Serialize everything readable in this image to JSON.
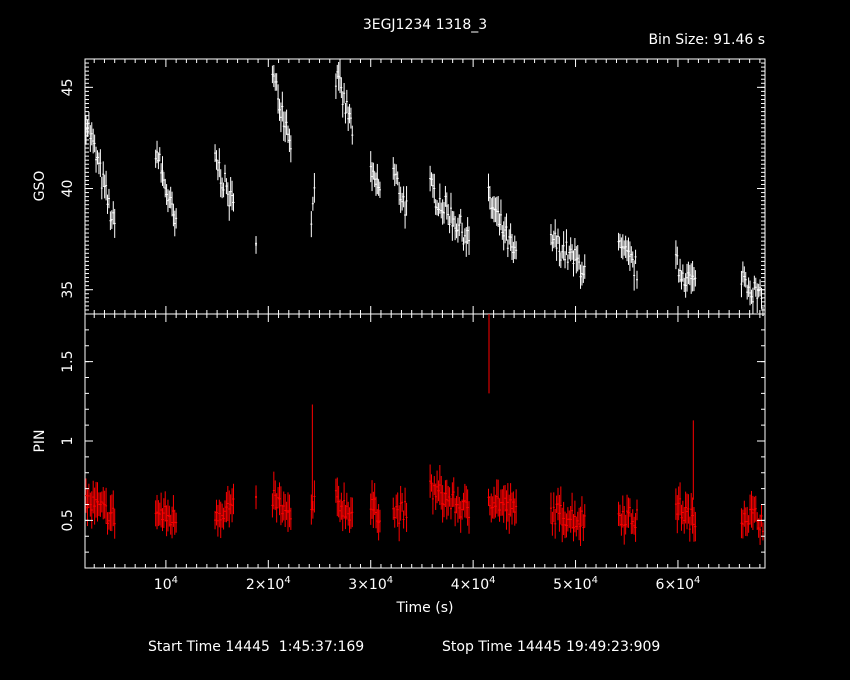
{
  "header": {
    "title": "3EGJ1234 1318_3",
    "bin_size": "Bin Size: 91.46 s"
  },
  "footer": {
    "start": "Start Time 14445  1:45:37:169",
    "stop": "Stop Time 14445 19:49:23:909"
  },
  "colors": {
    "gso": "#ffffff",
    "pin": "#ff0000",
    "axes": "#ffffff",
    "background": "#000000"
  },
  "chart_data": [
    {
      "type": "scatter",
      "panel": "top",
      "ylabel": "GSO",
      "ylim": [
        33.8,
        46.4
      ],
      "xlim": [
        2100,
        68500
      ],
      "yticks": [
        35,
        40,
        45
      ],
      "ytick_labels": [
        "35",
        "40",
        "45"
      ],
      "series": [
        {
          "color": "#ffffff",
          "error_bars": true,
          "segments": [
            {
              "x": [
                2200,
                5000
              ],
              "y": [
                43.5,
                38.0
              ]
            },
            {
              "x": [
                9000,
                11000
              ],
              "y": [
                42.0,
                38.0
              ]
            },
            {
              "x": [
                14800,
                16600
              ],
              "y": [
                41.5,
                39.0
              ]
            },
            {
              "x": [
                18800,
                18800
              ],
              "y": [
                37.8,
                37.8
              ]
            },
            {
              "x": [
                20400,
                22200
              ],
              "y": [
                45.5,
                42.5
              ]
            },
            {
              "x": [
                24200,
                24500
              ],
              "y": [
                38.0,
                40.5
              ]
            },
            {
              "x": [
                26600,
                28200
              ],
              "y": [
                45.5,
                43.0
              ]
            },
            {
              "x": [
                30000,
                30900
              ],
              "y": [
                40.5,
                40.0
              ]
            },
            {
              "x": [
                32200,
                33500
              ],
              "y": [
                40.8,
                39.0
              ]
            },
            {
              "x": [
                35800,
                39600
              ],
              "y": [
                40.0,
                37.5
              ]
            },
            {
              "x": [
                41500,
                44200
              ],
              "y": [
                39.5,
                36.5
              ]
            },
            {
              "x": [
                47600,
                50900
              ],
              "y": [
                37.5,
                36.0
              ]
            },
            {
              "x": [
                54200,
                56000
              ],
              "y": [
                37.0,
                36.0
              ]
            },
            {
              "x": [
                59800,
                61700
              ],
              "y": [
                36.2,
                35.2
              ]
            },
            {
              "x": [
                66200,
                68300
              ],
              "y": [
                35.8,
                34.3
              ]
            }
          ]
        }
      ]
    },
    {
      "type": "scatter",
      "panel": "bottom",
      "xlabel": "Time (s)",
      "ylabel": "PIN",
      "ylim": [
        0.2,
        1.8
      ],
      "xlim": [
        2100,
        68500
      ],
      "yticks": [
        0.5,
        1,
        1.5
      ],
      "ytick_labels": [
        "0.5",
        "1",
        "1.5"
      ],
      "xticks": [
        10000,
        20000,
        30000,
        40000,
        50000,
        60000
      ],
      "xtick_labels": [
        {
          "mant": "",
          "exp": "4",
          "prefix": "10"
        },
        {
          "mant": "2×10",
          "exp": "4"
        },
        {
          "mant": "3×10",
          "exp": "4"
        },
        {
          "mant": "4×10",
          "exp": "4"
        },
        {
          "mant": "5×10",
          "exp": "4"
        },
        {
          "mant": "6×10",
          "exp": "4"
        }
      ],
      "series": [
        {
          "color": "#ff0000",
          "error_bars": true,
          "segments": [
            {
              "x": [
                2200,
                5000
              ],
              "y": [
                0.62,
                0.52
              ]
            },
            {
              "x": [
                9000,
                11000
              ],
              "y": [
                0.55,
                0.5
              ]
            },
            {
              "x": [
                14800,
                16600
              ],
              "y": [
                0.55,
                0.58
              ]
            },
            {
              "x": [
                18800,
                18800
              ],
              "y": [
                0.58,
                0.58
              ]
            },
            {
              "x": [
                20400,
                22200
              ],
              "y": [
                0.65,
                0.5
              ]
            },
            {
              "x": [
                24200,
                24500
              ],
              "y": [
                0.55,
                0.6
              ]
            },
            {
              "x": [
                26600,
                28200
              ],
              "y": [
                0.62,
                0.55
              ]
            },
            {
              "x": [
                30000,
                30900
              ],
              "y": [
                0.58,
                0.55
              ]
            },
            {
              "x": [
                32200,
                33500
              ],
              "y": [
                0.55,
                0.55
              ]
            },
            {
              "x": [
                35800,
                39600
              ],
              "y": [
                0.7,
                0.55
              ]
            },
            {
              "x": [
                41500,
                44200
              ],
              "y": [
                0.65,
                0.55
              ]
            },
            {
              "x": [
                47600,
                50900
              ],
              "y": [
                0.55,
                0.5
              ]
            },
            {
              "x": [
                54200,
                56000
              ],
              "y": [
                0.55,
                0.5
              ]
            },
            {
              "x": [
                59800,
                61700
              ],
              "y": [
                0.6,
                0.48
              ]
            },
            {
              "x": [
                66200,
                68300
              ],
              "y": [
                0.55,
                0.5
              ]
            }
          ],
          "outliers": [
            {
              "x": 41550,
              "y": 1.58,
              "err": 0.28
            },
            {
              "x": 24300,
              "y": 0.9,
              "err": 0.33
            },
            {
              "x": 61500,
              "y": 0.88,
              "err": 0.25
            }
          ]
        }
      ]
    }
  ]
}
